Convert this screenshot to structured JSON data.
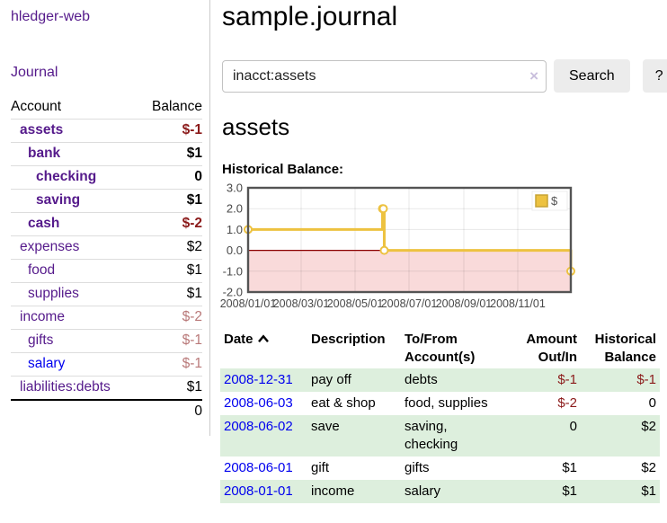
{
  "sidebar": {
    "brand": "hledger-web",
    "nav": {
      "journal": "Journal"
    },
    "accounts_table": {
      "headers": {
        "account": "Account",
        "balance": "Balance"
      },
      "rows": [
        {
          "name": "assets",
          "indent": 1,
          "bold": true,
          "balance": "$-1",
          "tone": "neg-strong",
          "link": "visited"
        },
        {
          "name": "bank",
          "indent": 2,
          "bold": true,
          "balance": "$1",
          "tone": "pos",
          "link": "visited"
        },
        {
          "name": "checking",
          "indent": 3,
          "bold": true,
          "balance": "0",
          "tone": "pos",
          "link": "visited"
        },
        {
          "name": "saving",
          "indent": 3,
          "bold": true,
          "balance": "$1",
          "tone": "pos",
          "link": "visited"
        },
        {
          "name": "cash",
          "indent": 2,
          "bold": true,
          "balance": "$-2",
          "tone": "neg-strong",
          "link": "visited"
        },
        {
          "name": "expenses",
          "indent": 1,
          "bold": false,
          "balance": "$2",
          "tone": "pos",
          "link": "visited"
        },
        {
          "name": "food",
          "indent": 2,
          "bold": false,
          "balance": "$1",
          "tone": "pos",
          "link": "visited"
        },
        {
          "name": "supplies",
          "indent": 2,
          "bold": false,
          "balance": "$1",
          "tone": "pos",
          "link": "visited"
        },
        {
          "name": "income",
          "indent": 1,
          "bold": false,
          "balance": "$-2",
          "tone": "neg-muted",
          "link": "visited"
        },
        {
          "name": "gifts",
          "indent": 2,
          "bold": false,
          "balance": "$-1",
          "tone": "neg-muted",
          "link": "visited"
        },
        {
          "name": "salary",
          "indent": 2,
          "bold": false,
          "balance": "$-1",
          "tone": "neg-muted",
          "link": "unvisited"
        },
        {
          "name": "liabilities:debts",
          "indent": 1,
          "bold": false,
          "balance": "$1",
          "tone": "pos",
          "link": "visited"
        }
      ],
      "total": "0"
    }
  },
  "header": {
    "title": "sample.journal"
  },
  "search": {
    "query": "inacct:assets",
    "clear_icon": "×",
    "button_label": "Search",
    "help_label": "?"
  },
  "account_view": {
    "title": "assets",
    "chart_label": "Historical Balance:"
  },
  "chart_data": {
    "type": "line",
    "step": true,
    "series": [
      {
        "name": "$",
        "color": "#edc240",
        "points": [
          {
            "date": "2008-01-01",
            "value": 1
          },
          {
            "date": "2008-06-01",
            "value": 2
          },
          {
            "date": "2008-06-02",
            "value": 2
          },
          {
            "date": "2008-06-03",
            "value": 0
          },
          {
            "date": "2008-12-31",
            "value": -1
          }
        ]
      }
    ],
    "xlim": [
      "2008-01-01",
      "2008-12-31"
    ],
    "ylim": [
      -2,
      3
    ],
    "x_ticks": [
      {
        "date": "2008-01-01",
        "label": "2008/01/01"
      },
      {
        "date": "2008-03-01",
        "label": "2008/03/01"
      },
      {
        "date": "2008-05-01",
        "label": "2008/05/01"
      },
      {
        "date": "2008-07-01",
        "label": "2008/07/01"
      },
      {
        "date": "2008-09-01",
        "label": "2008/09/01"
      },
      {
        "date": "2008-11-01",
        "label": "2008/11/01"
      }
    ],
    "y_ticks": [
      {
        "value": 3,
        "label": "3.0"
      },
      {
        "value": 2,
        "label": "2.0"
      },
      {
        "value": 1,
        "label": "1.0"
      },
      {
        "value": 0,
        "label": "0.0"
      },
      {
        "value": -1,
        "label": "-1.0"
      },
      {
        "value": -2,
        "label": "-2.0"
      }
    ],
    "legend": {
      "label": "$",
      "position": "top-right"
    },
    "grid": true,
    "zero_line": true
  },
  "register_table": {
    "headers": {
      "date": [
        "Date"
      ],
      "description": [
        "Description"
      ],
      "accounts": [
        "To/From",
        "Account(s)"
      ],
      "amount": [
        "Amount",
        "Out/In"
      ],
      "balance": [
        "Historical",
        "Balance"
      ]
    },
    "sort": {
      "column": "date",
      "direction": "asc"
    },
    "rows": [
      {
        "date": "2008-12-31",
        "description": "pay off",
        "accounts": "debts",
        "amount": "$-1",
        "balance": "$-1"
      },
      {
        "date": "2008-06-03",
        "description": "eat & shop",
        "accounts": "food, supplies",
        "amount": "$-2",
        "balance": "0"
      },
      {
        "date": "2008-06-02",
        "description": "save",
        "accounts": "saving, checking",
        "amount": "0",
        "balance": "$2"
      },
      {
        "date": "2008-06-01",
        "description": "gift",
        "accounts": "gifts",
        "amount": "$1",
        "balance": "$2"
      },
      {
        "date": "2008-01-01",
        "description": "income",
        "accounts": "salary",
        "amount": "$1",
        "balance": "$1"
      }
    ]
  },
  "colors": {
    "accent_purple": "#551a8b",
    "link_blue": "#0000ee",
    "negative_strong": "#8b1a1a",
    "negative_muted": "#b97979",
    "row_stripe_green": "#ddefdd",
    "chart_series_gold": "#edc240",
    "chart_negative_bg": "#f9dada",
    "chart_zero_line": "#8b0000",
    "chart_border": "#545454",
    "chart_tick_text": "#484848"
  }
}
